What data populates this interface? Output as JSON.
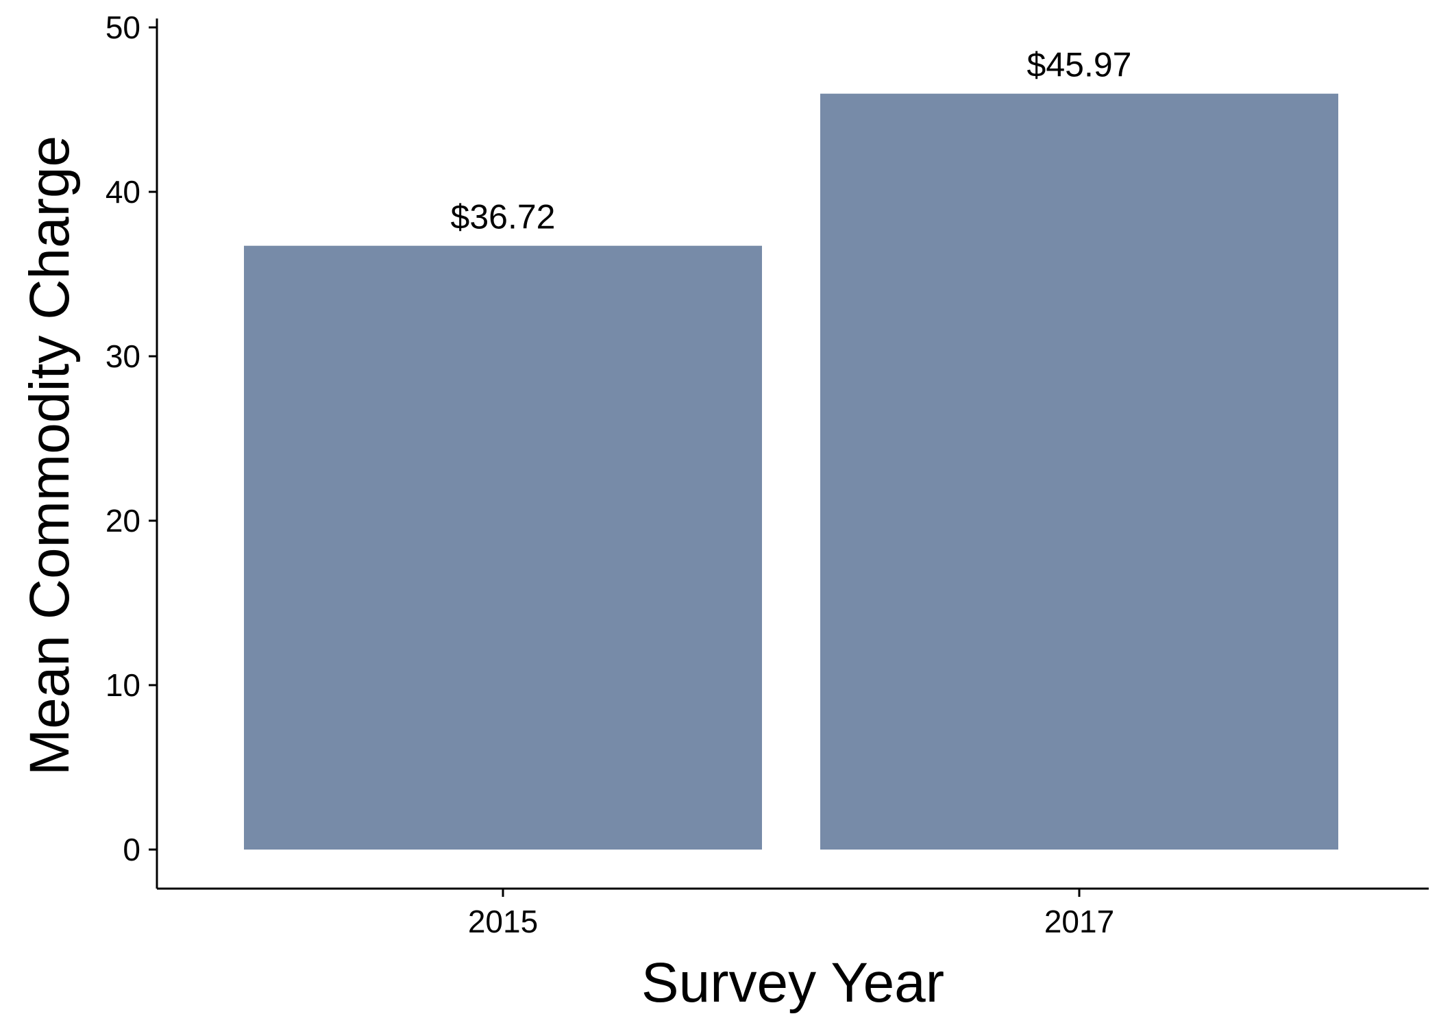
{
  "chart_data": {
    "type": "bar",
    "title": "",
    "xlabel": "Survey Year",
    "ylabel": "Mean Commodity Charge",
    "categories": [
      "2015",
      "2017"
    ],
    "values": [
      36.72,
      45.97
    ],
    "data_labels": [
      "$36.72",
      "$45.97"
    ],
    "ylim": [
      0,
      50
    ],
    "yticks": [
      0,
      10,
      20,
      30,
      40,
      50
    ],
    "ytick_labels": [
      "0",
      "10",
      "20",
      "30",
      "40",
      "50"
    ],
    "bar_color": "#778ba8",
    "grid": false,
    "legend": "none"
  }
}
